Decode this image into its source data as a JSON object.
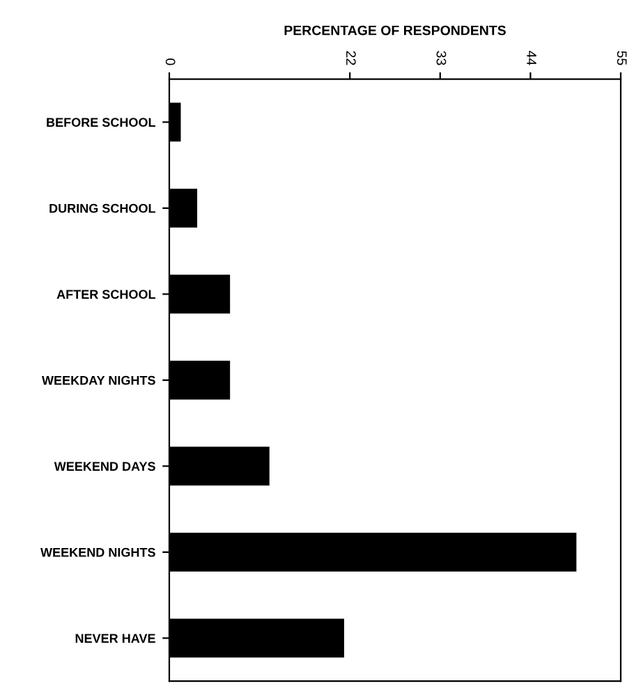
{
  "chart_data": {
    "type": "bar",
    "orientation": "horizontal",
    "xlabel": "PERCENTAGE OF RESPONDENTS",
    "categories": [
      "BEFORE SCHOOL",
      "DURING SCHOOL",
      "AFTER SCHOOL",
      "WEEKDAY NIGHTS",
      "WEEKEND DAYS",
      "WEEKEND NIGHTS",
      "NEVER HAVE"
    ],
    "values": [
      1.4,
      3.4,
      7.4,
      7.4,
      12.2,
      49.6,
      21.3
    ],
    "color": "#000000",
    "xlim": [
      0,
      55
    ],
    "xticks": [
      0,
      22,
      33,
      44,
      55
    ],
    "grid": false
  }
}
